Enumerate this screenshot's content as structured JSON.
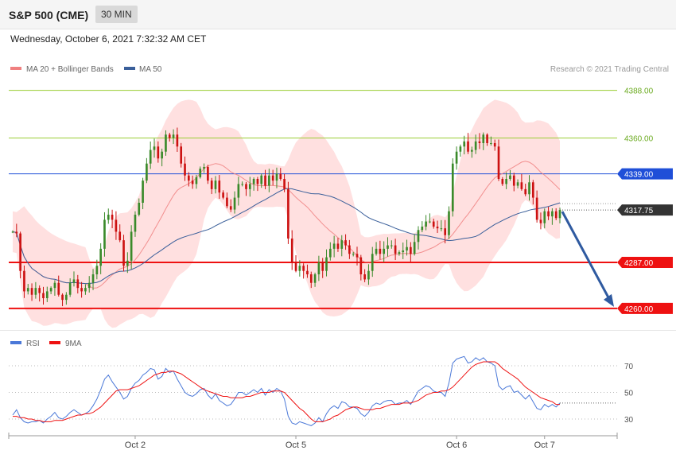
{
  "header": {
    "symbol": "S&P 500 (CME)",
    "interval": "30 MIN"
  },
  "datetime": "Wednesday, October 6, 2021 7:32:32 AM CET",
  "legend": [
    {
      "label": "MA 20 + Bollinger Bands",
      "color": "#f08080"
    },
    {
      "label": "MA 50",
      "color": "#3a5f9a"
    }
  ],
  "copyright": "Research © 2021 Trading Central",
  "colors": {
    "up": "#3a8a2a",
    "down": "#cc1111",
    "pivot": "#1f4fd8",
    "support": "#ee1111",
    "resistance": "#9acd32",
    "arrow": "#2f5aa0",
    "band": "#ffd6d6"
  },
  "chart_data": [
    {
      "type": "candlestick",
      "title": "",
      "xlabel": "",
      "ylabel": "",
      "ylim": [
        4252,
        4392
      ],
      "x_ticks": [
        "Oct 2",
        "Oct 5",
        "Oct 6",
        "Oct 7"
      ],
      "x_tick_index": [
        32,
        74,
        116,
        139
      ],
      "price_levels": [
        {
          "label": "4388.00",
          "value": 4388,
          "kind": "resistance"
        },
        {
          "label": "4360.00",
          "value": 4360,
          "kind": "resistance"
        },
        {
          "label": "4339.00",
          "value": 4339,
          "kind": "pivot"
        },
        {
          "label": "4287.00",
          "value": 4287,
          "kind": "support"
        },
        {
          "label": "4260.00",
          "value": 4260,
          "kind": "support"
        }
      ],
      "last_price": {
        "label": "4317.75",
        "value": 4317.75
      },
      "forecast_target": 4260,
      "closes": [
        4305,
        4304,
        4282,
        4270,
        4272,
        4268,
        4272,
        4269,
        4266,
        4270,
        4272,
        4275,
        4268,
        4265,
        4268,
        4275,
        4277,
        4272,
        4270,
        4272,
        4275,
        4280,
        4285,
        4295,
        4312,
        4315,
        4312,
        4305,
        4300,
        4285,
        4288,
        4305,
        4315,
        4322,
        4335,
        4345,
        4353,
        4355,
        4348,
        4352,
        4362,
        4360,
        4362,
        4355,
        4345,
        4338,
        4335,
        4333,
        4337,
        4342,
        4343,
        4335,
        4330,
        4335,
        4328,
        4325,
        4320,
        4318,
        4325,
        4333,
        4333,
        4330,
        4333,
        4336,
        4333,
        4338,
        4332,
        4338,
        4335,
        4339,
        4336,
        4330,
        4301,
        4287,
        4282,
        4285,
        4282,
        4280,
        4275,
        4280,
        4287,
        4282,
        4290,
        4295,
        4298,
        4295,
        4300,
        4297,
        4292,
        4292,
        4290,
        4280,
        4277,
        4282,
        4292,
        4295,
        4292,
        4295,
        4297,
        4297,
        4292,
        4293,
        4294,
        4296,
        4292,
        4299,
        4306,
        4308,
        4311,
        4311,
        4308,
        4307,
        4307,
        4303,
        4317,
        4345,
        4352,
        4355,
        4358,
        4352,
        4353,
        4358,
        4357,
        4362,
        4357,
        4357,
        4355,
        4336,
        4333,
        4336,
        4338,
        4332,
        4334,
        4330,
        4327,
        4334,
        4325,
        4312,
        4310,
        4317,
        4314,
        4317,
        4313,
        4317.75
      ],
      "rsi": {
        "ylim": [
          20,
          82
        ],
        "levels": [
          70,
          50,
          30
        ],
        "series": [
          {
            "name": "RSI",
            "color": "#4a78d8",
            "values": [
              33,
              37,
              31,
              28,
              27,
              28,
              28,
              29,
              27,
              30,
              32,
              35,
              31,
              30,
              32,
              35,
              37,
              35,
              33,
              34,
              36,
              40,
              45,
              52,
              60,
              63,
              58,
              54,
              50,
              45,
              47,
              53,
              57,
              59,
              63,
              65,
              68,
              67,
              60,
              62,
              68,
              65,
              66,
              60,
              55,
              50,
              48,
              47,
              49,
              52,
              53,
              48,
              45,
              49,
              44,
              42,
              40,
              41,
              45,
              50,
              50,
              48,
              50,
              52,
              50,
              53,
              48,
              52,
              50,
              53,
              51,
              45,
              32,
              27,
              26,
              28,
              27,
              26,
              25,
              27,
              31,
              28,
              34,
              38,
              40,
              38,
              43,
              42,
              39,
              39,
              38,
              34,
              32,
              35,
              40,
              42,
              41,
              43,
              44,
              44,
              41,
              42,
              42,
              44,
              41,
              46,
              51,
              53,
              55,
              54,
              51,
              50,
              50,
              47,
              57,
              72,
              75,
              76,
              77,
              72,
              73,
              76,
              74,
              76,
              73,
              72,
              70,
              55,
              52,
              54,
              55,
              50,
              51,
              48,
              45,
              48,
              43,
              38,
              37,
              41,
              39,
              41,
              39,
              42
            ]
          },
          {
            "name": "9MA",
            "color": "#ee1111",
            "values": [
              32,
              32,
              31,
              31,
              30,
              30,
              29,
              29,
              28,
              28,
              28,
              29,
              29,
              29,
              30,
              31,
              32,
              33,
              33,
              34,
              34,
              35,
              37,
              39,
              42,
              45,
              48,
              51,
              52,
              52,
              52,
              53,
              54,
              55,
              57,
              59,
              61,
              63,
              64,
              65,
              65,
              66,
              66,
              65,
              64,
              62,
              60,
              58,
              56,
              54,
              52,
              51,
              50,
              49,
              48,
              47,
              47,
              46,
              46,
              46,
              46,
              47,
              47,
              48,
              49,
              50,
              50,
              50,
              51,
              51,
              51,
              50,
              47,
              44,
              41,
              38,
              36,
              33,
              30,
              28,
              28,
              28,
              29,
              30,
              32,
              33,
              35,
              37,
              38,
              39,
              39,
              38,
              37,
              37,
              37,
              38,
              38,
              39,
              40,
              41,
              41,
              41,
              42,
              42,
              42,
              43,
              44,
              46,
              48,
              49,
              50,
              50,
              51,
              51,
              52,
              54,
              57,
              60,
              63,
              66,
              69,
              71,
              72,
              73,
              73,
              73,
              73,
              71,
              68,
              66,
              64,
              62,
              60,
              57,
              54,
              52,
              50,
              48,
              46,
              45,
              44,
              43,
              41,
              41
            ]
          }
        ]
      }
    }
  ]
}
